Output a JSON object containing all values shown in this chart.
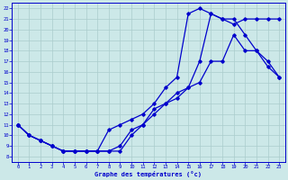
{
  "title": "Graphe des températures (°c)",
  "bg_color": "#cce8e8",
  "line_color": "#0000cc",
  "grid_color": "#aacccc",
  "xlim": [
    -0.5,
    23.5
  ],
  "ylim": [
    7.5,
    22.5
  ],
  "xticks": [
    0,
    1,
    2,
    3,
    4,
    5,
    6,
    7,
    8,
    9,
    10,
    11,
    12,
    13,
    14,
    15,
    16,
    17,
    18,
    19,
    20,
    21,
    22,
    23
  ],
  "yticks": [
    8,
    9,
    10,
    11,
    12,
    13,
    14,
    15,
    16,
    17,
    18,
    19,
    20,
    21,
    22
  ],
  "curve1_x": [
    0,
    1,
    2,
    3,
    4,
    5,
    6,
    7,
    8,
    9,
    10,
    11,
    12,
    13,
    14,
    15,
    16,
    17,
    18,
    19,
    20,
    21,
    22,
    23
  ],
  "curve1_y": [
    11,
    10,
    9.5,
    9,
    8.5,
    8.5,
    8.5,
    8.5,
    8.5,
    9,
    10.5,
    11,
    12.5,
    13,
    14,
    14.5,
    17,
    21.5,
    21,
    21,
    19.5,
    18,
    16.5,
    15.5
  ],
  "curve2_x": [
    0,
    1,
    2,
    3,
    4,
    5,
    6,
    7,
    8,
    9,
    10,
    11,
    12,
    13,
    14,
    15,
    16,
    17,
    18,
    19,
    20,
    21,
    22,
    23
  ],
  "curve2_y": [
    11,
    10,
    9.5,
    9,
    8.5,
    8.5,
    8.5,
    8.5,
    10.5,
    11,
    11.5,
    12,
    13,
    14.5,
    15.5,
    21.5,
    22,
    21.5,
    21,
    20.5,
    21,
    21,
    21,
    21
  ],
  "curve3_x": [
    0,
    1,
    2,
    3,
    4,
    5,
    6,
    7,
    8,
    9,
    10,
    11,
    12,
    13,
    14,
    15,
    16,
    17,
    18,
    19,
    20,
    21,
    22,
    23
  ],
  "curve3_y": [
    11,
    10,
    9.5,
    9,
    8.5,
    8.5,
    8.5,
    8.5,
    8.5,
    8.5,
    10,
    11,
    12,
    13,
    13.5,
    14.5,
    15,
    17,
    17,
    19.5,
    18,
    18,
    17,
    15.5
  ]
}
